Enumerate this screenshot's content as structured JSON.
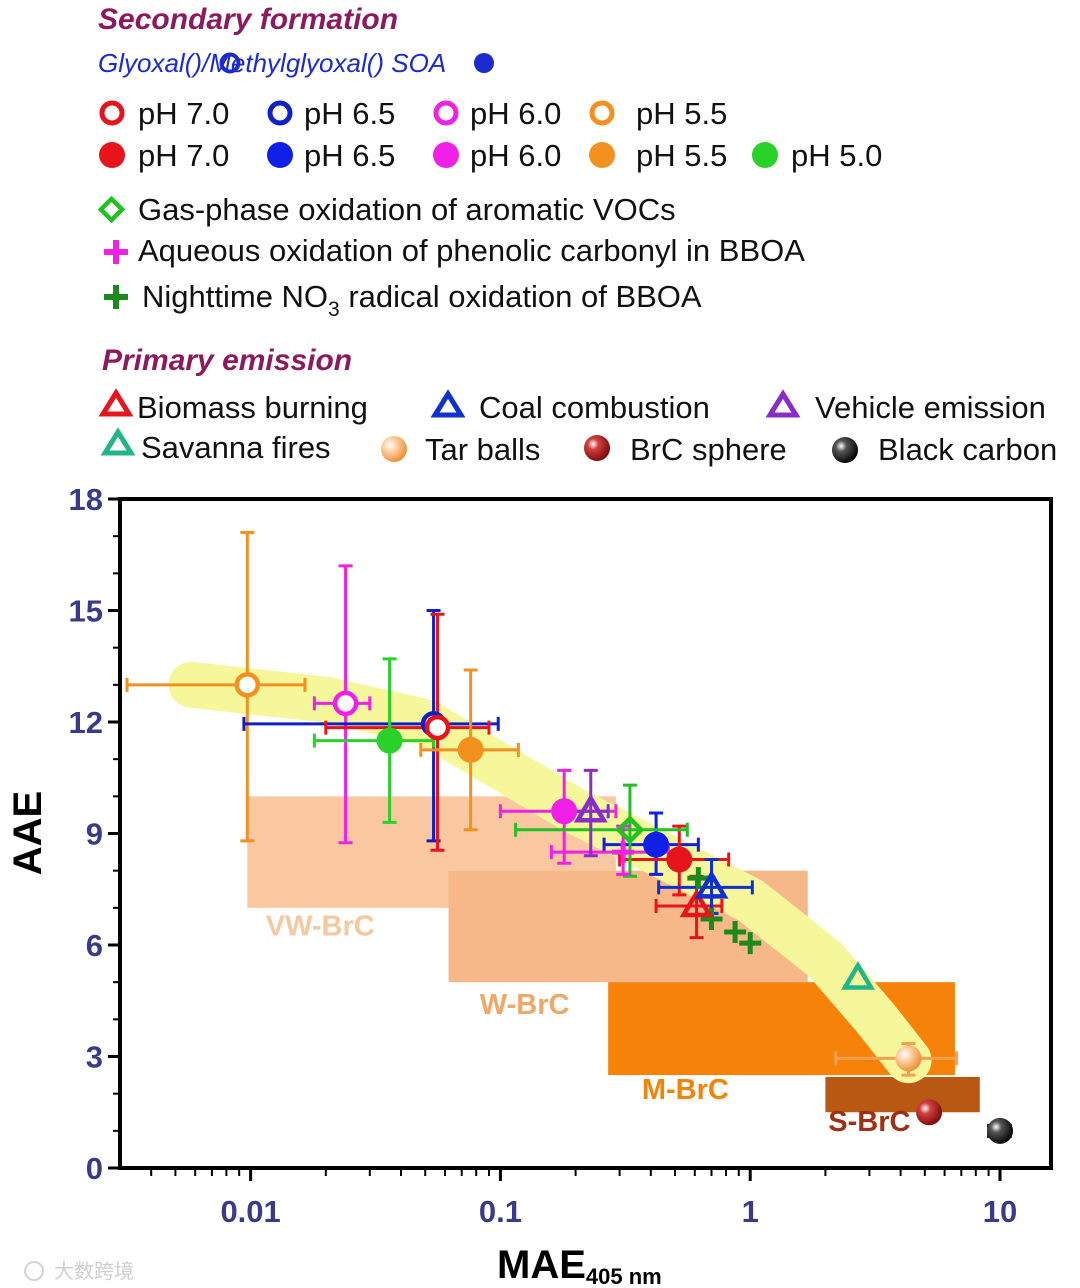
{
  "legend": {
    "secondary_title": "Secondary formation",
    "soa_title_part1": "Glyoxal(",
    "soa_title_part2": ")/Methylglyoxal(",
    "soa_title_part3": ") SOA",
    "open_items": [
      {
        "label": "pH 7.0",
        "color": "#e8141c"
      },
      {
        "label": "pH 6.5",
        "color": "#1020c8"
      },
      {
        "label": "pH 6.0",
        "color": "#f020e6"
      },
      {
        "label": "pH 5.5",
        "color": "#f4901e"
      }
    ],
    "filled_items": [
      {
        "label": "pH 7.0",
        "color": "#e8141c"
      },
      {
        "label": "pH 6.5",
        "color": "#1020e6"
      },
      {
        "label": "pH 6.0",
        "color": "#f020e6"
      },
      {
        "label": "pH 5.5",
        "color": "#f4901e"
      },
      {
        "label": "pH 5.0",
        "color": "#28d228"
      }
    ],
    "gas_phase": "Gas-phase oxidation of aromatic VOCs",
    "aqueous": "Aqueous oxidation of phenolic carbonyl in BBOA",
    "nighttime_part1": "Nighttime NO",
    "nighttime_sub": "3",
    "nighttime_part2": " radical oxidation of BBOA",
    "primary_title": "Primary emission",
    "primary_items": [
      {
        "label": "Biomass burning",
        "marker": "triangle",
        "color": "#e8141c"
      },
      {
        "label": "Coal combustion",
        "marker": "triangle",
        "color": "#1030d0"
      },
      {
        "label": "Vehicle emission",
        "marker": "triangle",
        "color": "#8a2cc8"
      },
      {
        "label": "Savanna fires",
        "marker": "triangle",
        "color": "#22b58a"
      },
      {
        "label": "Tar balls",
        "marker": "sphere",
        "color": "#f4a050"
      },
      {
        "label": "BrC sphere",
        "marker": "sphere",
        "color": "#a01010"
      },
      {
        "label": "Black carbon",
        "marker": "sphere",
        "color": "#111111"
      }
    ]
  },
  "colors": {
    "secondary_title": "#8b1a5e",
    "soa_title": "#1a2bd0",
    "gas_phase": "#22c022",
    "aqueous": "#f020e6",
    "nighttime": "#1a8a1a",
    "tick_label": "#3a3a8c",
    "trend_band": "#f5f79a"
  },
  "watermark": "大数跨境",
  "chart_data": {
    "type": "scatter",
    "xlabel": "MAE",
    "xlabel_sub": "405 nm",
    "ylabel": "AAE",
    "xscale": "log",
    "xlim": [
      0.003,
      16
    ],
    "ylim": [
      0,
      18
    ],
    "xticks": [
      {
        "v": 0.01,
        "label": "0.01"
      },
      {
        "v": 0.1,
        "label": "0.1"
      },
      {
        "v": 1,
        "label": "1"
      },
      {
        "v": 10,
        "label": "10"
      }
    ],
    "yticks": [
      {
        "v": 0,
        "label": "0"
      },
      {
        "v": 3,
        "label": "3"
      },
      {
        "v": 6,
        "label": "6"
      },
      {
        "v": 9,
        "label": "9"
      },
      {
        "v": 12,
        "label": "12"
      },
      {
        "v": 15,
        "label": "15"
      },
      {
        "v": 18,
        "label": "18"
      }
    ],
    "regions": [
      {
        "name": "VW-BrC",
        "x": [
          0.0097,
          0.29
        ],
        "y": [
          7.0,
          10.0
        ],
        "color": "#fac8a0",
        "label_x": 0.019,
        "label_y": 6.25,
        "label_color": "#f5c8a0"
      },
      {
        "name": "W-BrC",
        "x": [
          0.062,
          1.7
        ],
        "y": [
          5.0,
          8.0
        ],
        "color": "#f6b888",
        "label_x": 0.125,
        "label_y": 4.15,
        "label_color": "#f0a868"
      },
      {
        "name": "M-BrC",
        "x": [
          0.27,
          6.6
        ],
        "y": [
          2.5,
          5.0
        ],
        "color": "#f7820a",
        "label_x": 0.55,
        "label_y": 1.85,
        "label_color": "#f0850a"
      },
      {
        "name": "S-BrC",
        "x": [
          2.0,
          8.3
        ],
        "y": [
          1.5,
          2.45
        ],
        "color": "#b85812",
        "label_x": 3.0,
        "label_y": 1.0,
        "label_color": "#a03012"
      }
    ],
    "trend_band": [
      [
        0.0058,
        13.0
      ],
      [
        0.02,
        12.6
      ],
      [
        0.05,
        12.0
      ],
      [
        0.1,
        10.8
      ],
      [
        0.2,
        9.6
      ],
      [
        0.45,
        8.4
      ],
      [
        1.0,
        7.2
      ],
      [
        2.0,
        5.6
      ],
      [
        3.2,
        4.0
      ],
      [
        4.3,
        2.9
      ]
    ],
    "series": [
      {
        "name": "Glyoxal SOA pH 5.5",
        "marker": "open-circle",
        "color": "#f4901e",
        "points": [
          {
            "x": 0.0097,
            "y": 13.0,
            "xerr": [
              0.0032,
              0.0165
            ],
            "yerr": [
              8.8,
              17.1
            ]
          }
        ]
      },
      {
        "name": "Glyoxal SOA pH 6.0",
        "marker": "open-circle",
        "color": "#f020e6",
        "points": [
          {
            "x": 0.024,
            "y": 12.5,
            "xerr": [
              0.018,
              0.03
            ],
            "yerr": [
              8.75,
              16.2
            ]
          }
        ]
      },
      {
        "name": "Glyoxal SOA pH 6.5",
        "marker": "open-circle",
        "color": "#1020c8",
        "points": [
          {
            "x": 0.054,
            "y": 11.95,
            "xerr": [
              0.0094,
              0.098
            ],
            "yerr": [
              8.8,
              15.0
            ]
          }
        ]
      },
      {
        "name": "Glyoxal SOA pH 7.0",
        "marker": "open-circle",
        "color": "#e8141c",
        "points": [
          {
            "x": 0.056,
            "y": 11.85,
            "xerr": [
              0.02,
              0.09
            ],
            "yerr": [
              8.55,
              14.9
            ]
          }
        ]
      },
      {
        "name": "Methylglyoxal SOA pH 5.0",
        "marker": "filled-circle",
        "color": "#28d228",
        "points": [
          {
            "x": 0.036,
            "y": 11.5,
            "xerr": [
              0.018,
              0.054
            ],
            "yerr": [
              9.3,
              13.7
            ]
          }
        ]
      },
      {
        "name": "Methylglyoxal SOA pH 5.5",
        "marker": "filled-circle",
        "color": "#f4901e",
        "points": [
          {
            "x": 0.076,
            "y": 11.25,
            "xerr": [
              0.048,
              0.118
            ],
            "yerr": [
              9.1,
              13.4
            ]
          }
        ]
      },
      {
        "name": "Methylglyoxal SOA pH 6.0",
        "marker": "filled-circle",
        "color": "#f020e6",
        "points": [
          {
            "x": 0.18,
            "y": 9.6,
            "xerr": [
              0.1,
              0.29
            ],
            "yerr": [
              8.2,
              10.7
            ]
          }
        ]
      },
      {
        "name": "Methylglyoxal SOA pH 6.5",
        "marker": "filled-circle",
        "color": "#1020e6",
        "points": [
          {
            "x": 0.42,
            "y": 8.7,
            "xerr": [
              0.26,
              0.62
            ],
            "yerr": [
              7.9,
              9.55
            ]
          }
        ]
      },
      {
        "name": "Methylglyoxal SOA pH 7.0",
        "marker": "filled-circle",
        "color": "#e8141c",
        "points": [
          {
            "x": 0.52,
            "y": 8.3,
            "xerr": [
              0.3,
              0.82
            ],
            "yerr": [
              7.35,
              9.2
            ]
          }
        ]
      },
      {
        "name": "Gas-phase oxidation of aromatic VOCs",
        "marker": "open-diamond",
        "color": "#22c022",
        "points": [
          {
            "x": 0.33,
            "y": 9.1,
            "xerr": [
              0.115,
              0.56
            ],
            "yerr": [
              7.85,
              10.3
            ]
          }
        ]
      },
      {
        "name": "Aqueous oxidation of phenolic carbonyl in BBOA",
        "marker": "plus",
        "color": "#f020e6",
        "points": [
          {
            "x": 0.31,
            "y": 8.5,
            "xerr": [
              0.16,
              0.47
            ],
            "yerr": [
              7.9,
              9.2
            ]
          }
        ]
      },
      {
        "name": "Nighttime NO3 radical oxidation of BBOA",
        "marker": "plus",
        "color": "#1a8a1a",
        "points": [
          {
            "x": 0.62,
            "y": 7.8
          },
          {
            "x": 0.7,
            "y": 6.7
          },
          {
            "x": 0.87,
            "y": 6.35
          },
          {
            "x": 1.0,
            "y": 6.05
          }
        ]
      },
      {
        "name": "Biomass burning",
        "marker": "open-triangle",
        "color": "#e8141c",
        "points": [
          {
            "x": 0.61,
            "y": 7.05,
            "xerr": [
              0.42,
              0.77
            ],
            "yerr": [
              6.2,
              7.85
            ]
          }
        ]
      },
      {
        "name": "Coal combustion",
        "marker": "open-triangle",
        "color": "#1030d0",
        "points": [
          {
            "x": 0.7,
            "y": 7.55,
            "xerr": [
              0.43,
              1.02
            ],
            "yerr": [
              6.85,
              8.3
            ]
          }
        ]
      },
      {
        "name": "Vehicle emission",
        "marker": "open-triangle",
        "color": "#8a2cc8",
        "points": [
          {
            "x": 0.23,
            "y": 9.6,
            "xerr": [
              0.165,
              0.27
            ],
            "yerr": [
              8.4,
              10.7
            ]
          }
        ]
      },
      {
        "name": "Savanna fires",
        "marker": "open-triangle",
        "color": "#22b58a",
        "points": [
          {
            "x": 2.7,
            "y": 5.1
          }
        ]
      },
      {
        "name": "Tar balls",
        "marker": "sphere",
        "color": "#f4a050",
        "points": [
          {
            "x": 4.3,
            "y": 2.95,
            "xerr": [
              2.2,
              6.7
            ],
            "yerr": [
              2.5,
              3.35
            ]
          }
        ]
      },
      {
        "name": "BrC sphere",
        "marker": "sphere",
        "color": "#a01010",
        "points": [
          {
            "x": 5.2,
            "y": 1.5
          }
        ]
      },
      {
        "name": "Black carbon",
        "marker": "sphere",
        "color": "#111111",
        "points": [
          {
            "x": 10.0,
            "y": 1.0,
            "xerr": [
              9.0,
              11.0
            ]
          }
        ]
      }
    ]
  }
}
